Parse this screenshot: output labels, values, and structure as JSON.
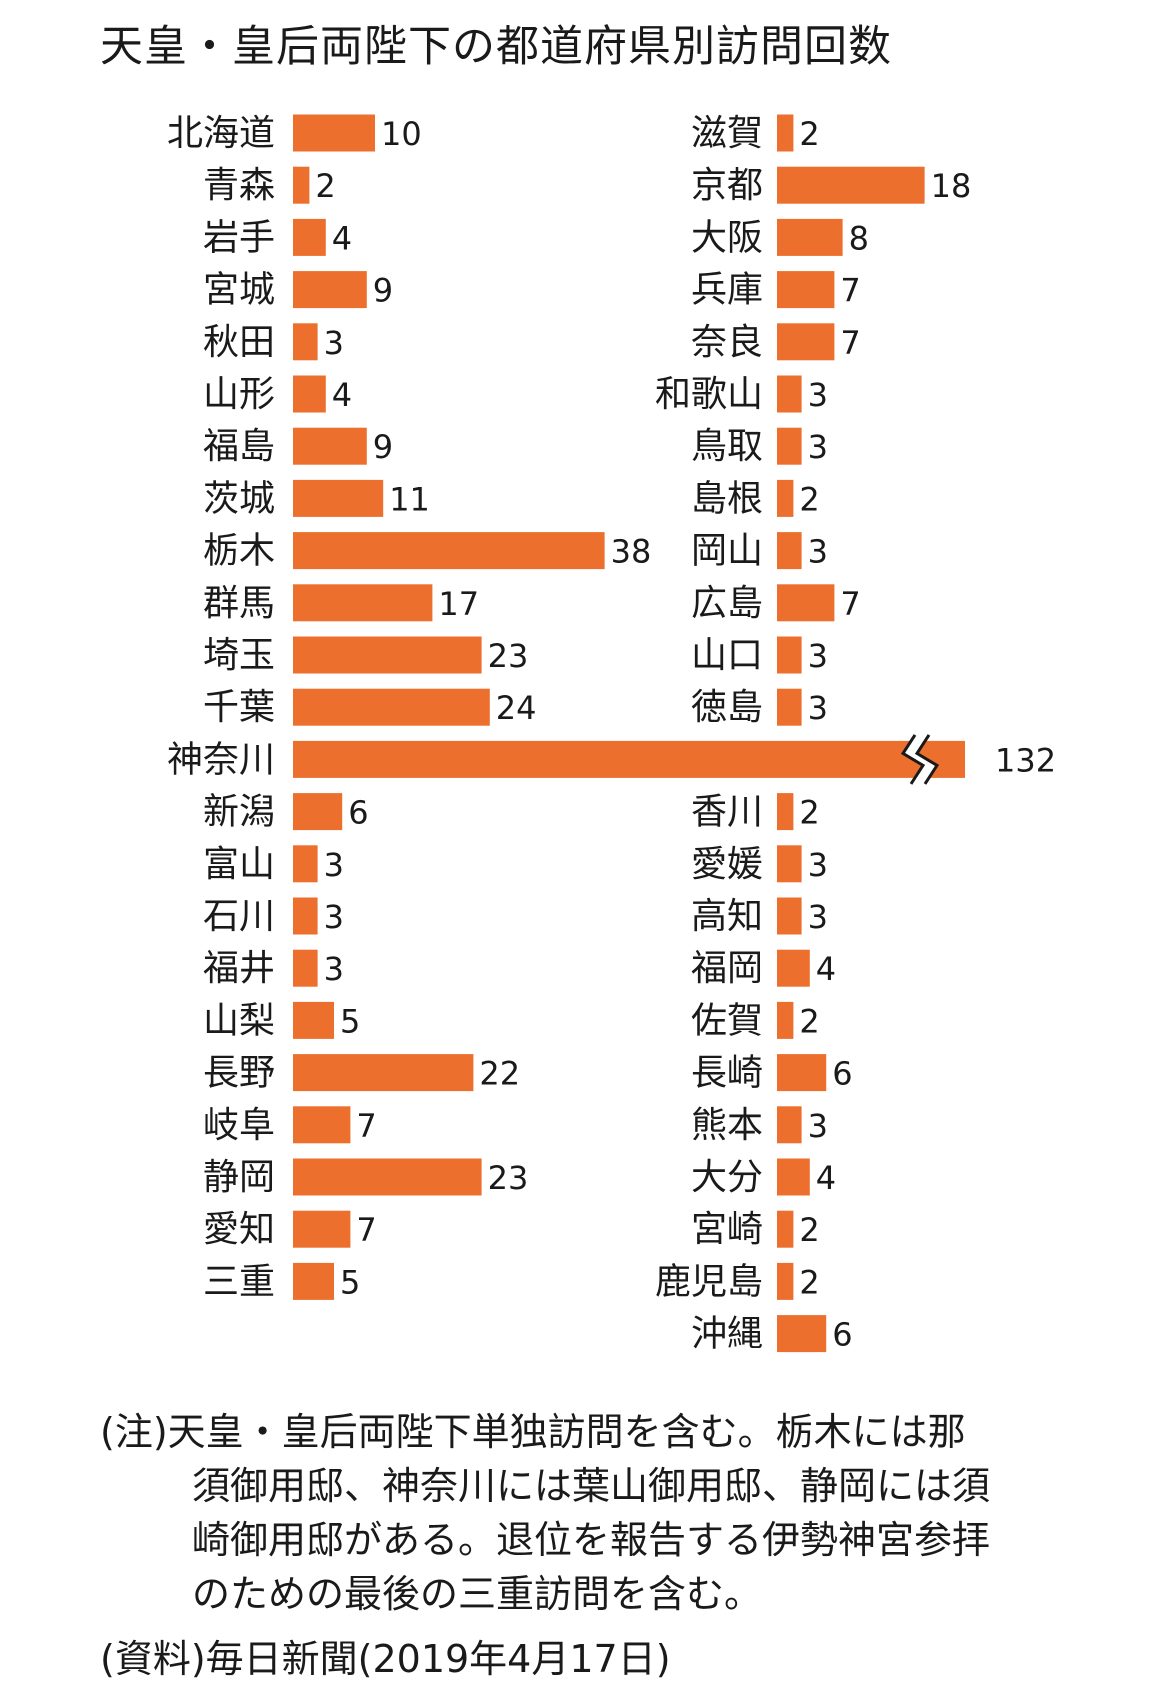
{
  "chart_data": {
    "type": "bar",
    "orientation": "horizontal",
    "title": "天皇・皇后両陛下の都道府県別訪問回数",
    "columns": [
      {
        "categories": [
          "北海道",
          "青森",
          "岩手",
          "宮城",
          "秋田",
          "山形",
          "福島",
          "茨城",
          "栃木",
          "群馬",
          "埼玉",
          "千葉",
          "神奈川",
          "新潟",
          "富山",
          "石川",
          "福井",
          "山梨",
          "長野",
          "岐阜",
          "静岡",
          "愛知",
          "三重"
        ],
        "values": [
          10,
          2,
          4,
          9,
          3,
          4,
          9,
          11,
          38,
          17,
          23,
          24,
          132,
          6,
          3,
          3,
          3,
          5,
          22,
          7,
          23,
          7,
          5
        ]
      },
      {
        "categories": [
          "滋賀",
          "京都",
          "大阪",
          "兵庫",
          "奈良",
          "和歌山",
          "鳥取",
          "島根",
          "岡山",
          "広島",
          "山口",
          "徳島",
          "",
          "香川",
          "愛媛",
          "高知",
          "福岡",
          "佐賀",
          "長崎",
          "熊本",
          "大分",
          "宮崎",
          "鹿児島",
          "沖縄"
        ],
        "values": [
          2,
          18,
          8,
          7,
          7,
          3,
          3,
          2,
          3,
          7,
          3,
          3,
          null,
          2,
          3,
          3,
          4,
          2,
          6,
          3,
          4,
          2,
          2,
          6
        ]
      }
    ],
    "broken_axis_category": "神奈川",
    "bar_color": "#ec6f2d"
  },
  "notes": {
    "line1": "(注)天皇・皇后両陛下単独訪問を含む。栃木には那",
    "line2": "須御用邸、神奈川には葉山御用邸、静岡には須",
    "line3": "崎御用邸がある。退位を報告する伊勢神宮参拝",
    "line4": "のための最後の三重訪問を含む。"
  },
  "source": "(資料)毎日新聞(2019年4月17日)"
}
